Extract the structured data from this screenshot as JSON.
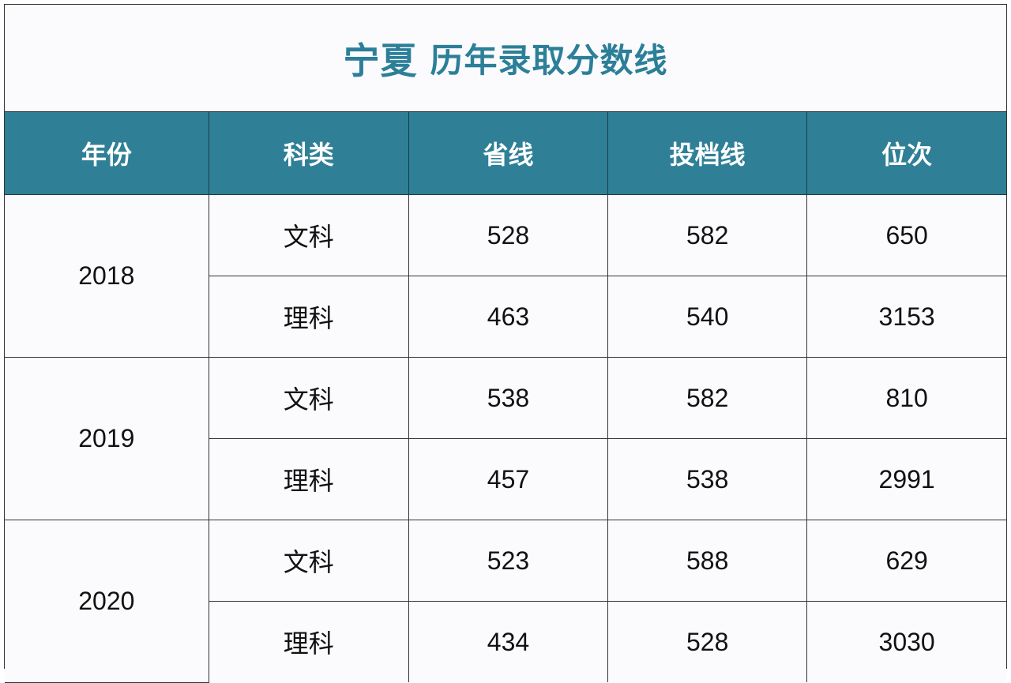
{
  "title": {
    "province": "宁夏",
    "text": "历年录取分数线"
  },
  "colors": {
    "header_bg": "#2f8097",
    "title": "#2c7f98"
  },
  "table": {
    "headers": [
      "年份",
      "科类",
      "省线",
      "投档线",
      "位次"
    ],
    "groups": [
      {
        "year": "2018",
        "rows": [
          [
            "文科",
            "528",
            "582",
            "650"
          ],
          [
            "理科",
            "463",
            "540",
            "3153"
          ]
        ]
      },
      {
        "year": "2019",
        "rows": [
          [
            "文科",
            "538",
            "582",
            "810"
          ],
          [
            "理科",
            "457",
            "538",
            "2991"
          ]
        ]
      },
      {
        "year": "2020",
        "rows": [
          [
            "文科",
            "523",
            "588",
            "629"
          ],
          [
            "理科",
            "434",
            "528",
            "3030"
          ]
        ]
      }
    ]
  }
}
